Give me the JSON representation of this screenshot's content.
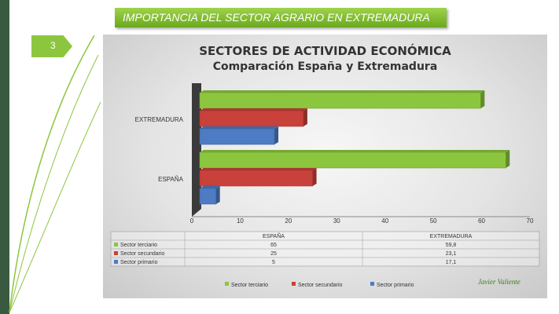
{
  "slide": {
    "title": "IMPORTANCIA DEL SECTOR AGRARIO EN EXTREMADURA",
    "page_number": "3",
    "author": "Javier Valiente"
  },
  "colors": {
    "terciario": "#8cc63f",
    "secundario": "#c9413b",
    "primario": "#4d7cc4",
    "banner": "#8cc63f",
    "left_bar": "#3a5a40"
  },
  "chart_data": {
    "type": "bar",
    "orientation": "horizontal",
    "title": "SECTORES DE ACTIVIDAD ECONÓMICA",
    "subtitle": "Comparación España y Extremadura",
    "categories": [
      "ESPAÑA",
      "EXTREMADURA"
    ],
    "series": [
      {
        "name": "Sector terciario",
        "values": [
          65,
          59.8
        ],
        "value_labels": [
          "65",
          "59,8"
        ]
      },
      {
        "name": "Sector secundario",
        "values": [
          25,
          23.1
        ],
        "value_labels": [
          "25",
          "23,1"
        ]
      },
      {
        "name": "Sector primario",
        "values": [
          5,
          17.1
        ],
        "value_labels": [
          "5",
          "17,1"
        ]
      }
    ],
    "xlim": [
      0,
      70
    ],
    "x_ticks": [
      "0",
      "10",
      "20",
      "30",
      "40",
      "50",
      "60",
      "70"
    ],
    "grid": false,
    "legend": "bottom",
    "data_table": {
      "headers": [
        "ESPAÑA",
        "EXTREMADURA"
      ],
      "rows": [
        {
          "label": "Sector terciario",
          "values": [
            "65",
            "59,8"
          ]
        },
        {
          "label": "Sector secundario",
          "values": [
            "25",
            "23,1"
          ]
        },
        {
          "label": "Sector primario",
          "values": [
            "5",
            "17,1"
          ]
        }
      ]
    }
  }
}
